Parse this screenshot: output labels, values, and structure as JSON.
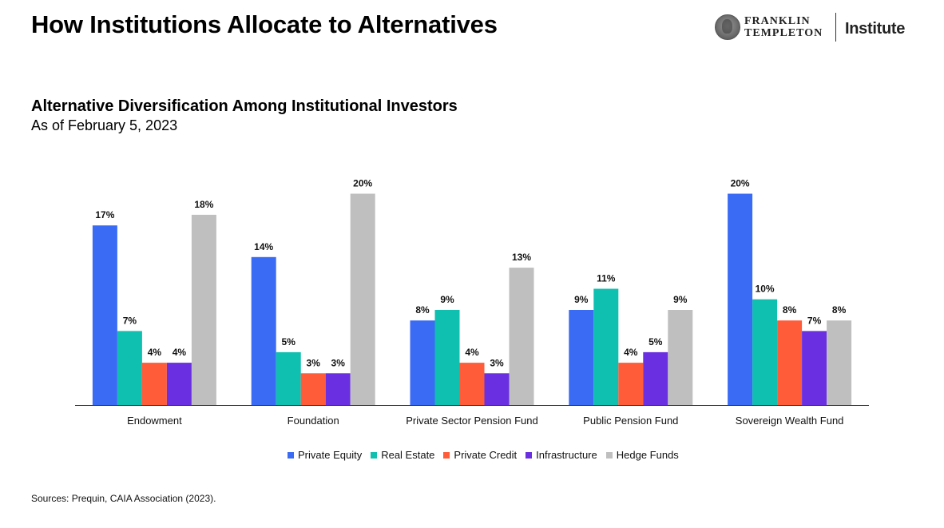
{
  "page": {
    "title": "How Institutions Allocate to Alternatives"
  },
  "brand": {
    "line1": "FRANKLIN",
    "line2": "TEMPLETON",
    "suffix": "Institute"
  },
  "chart_data": {
    "type": "bar",
    "title": "Alternative Diversification Among Institutional Investors",
    "subtitle": "As of February 5, 2023",
    "categories": [
      "Endowment",
      "Foundation",
      "Private Sector Pension Fund",
      "Public Pension Fund",
      "Sovereign Wealth Fund"
    ],
    "series": [
      {
        "name": "Private Equity",
        "color": "#3A6BF5",
        "values": [
          17,
          14,
          8,
          9,
          20
        ]
      },
      {
        "name": "Real Estate",
        "color": "#0FBFB0",
        "values": [
          7,
          5,
          9,
          11,
          10
        ]
      },
      {
        "name": "Private Credit",
        "color": "#FF5C39",
        "values": [
          4,
          3,
          4,
          4,
          8
        ]
      },
      {
        "name": "Infrastructure",
        "color": "#6A2FE0",
        "values": [
          4,
          3,
          3,
          5,
          7
        ]
      },
      {
        "name": "Hedge Funds",
        "color": "#BFBFBF",
        "values": [
          18,
          20,
          13,
          9,
          8
        ]
      }
    ],
    "value_suffix": "%",
    "ylim": [
      0,
      21.7
    ],
    "grid": false,
    "legend_position": "bottom"
  },
  "footer": {
    "source": "Sources: Prequin, CAIA Association (2023)."
  }
}
